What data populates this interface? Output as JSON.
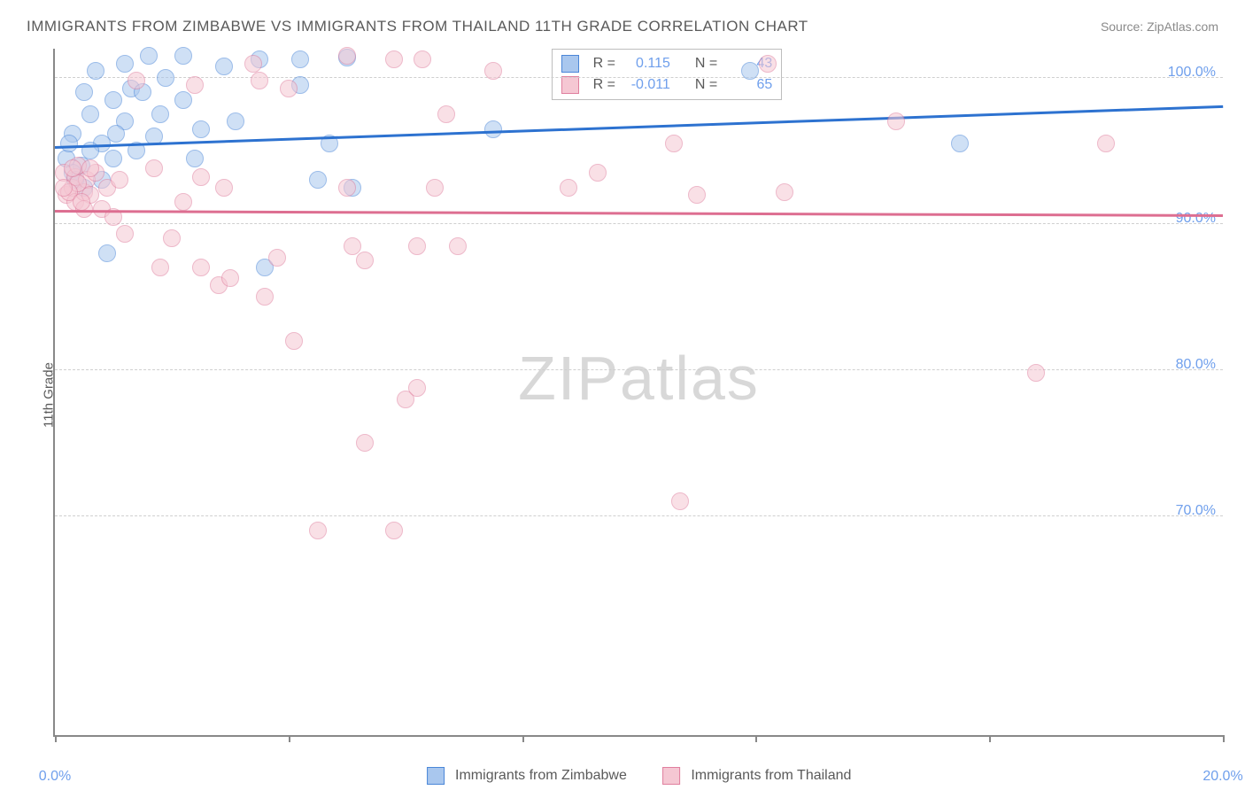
{
  "title": "IMMIGRANTS FROM ZIMBABWE VS IMMIGRANTS FROM THAILAND 11TH GRADE CORRELATION CHART",
  "source": "Source: ZipAtlas.com",
  "y_axis_label": "11th Grade",
  "watermark": "ZIPatlas",
  "chart": {
    "type": "scatter",
    "xlim": [
      0,
      20
    ],
    "ylim": [
      55,
      102
    ],
    "y_ticks": [
      70,
      80,
      90,
      100
    ],
    "y_tick_labels": [
      "70.0%",
      "80.0%",
      "90.0%",
      "100.0%"
    ],
    "x_ticks": [
      0,
      4,
      8,
      12,
      16,
      20
    ],
    "x_tick_labels": {
      "0": "0.0%",
      "20": "20.0%"
    },
    "background_color": "#ffffff",
    "grid_color": "#cfcfcf",
    "axis_color": "#888888",
    "label_color": "#5a5a5a",
    "tick_label_color": "#6f9fec",
    "marker_radius": 10,
    "marker_opacity": 0.55
  },
  "series": [
    {
      "name": "Immigrants from Zimbabwe",
      "fill": "#a9c7ee",
      "stroke": "#4a86d8",
      "trend_color": "#2d72d0",
      "R": "0.115",
      "N": "43",
      "trend": {
        "x1": 0,
        "y1": 95.2,
        "x2": 20,
        "y2": 98.0
      },
      "points": [
        [
          0.3,
          96.2
        ],
        [
          0.45,
          94.0
        ],
        [
          0.5,
          99.0
        ],
        [
          0.3,
          93.5
        ],
        [
          0.6,
          97.5
        ],
        [
          0.2,
          94.5
        ],
        [
          0.7,
          100.5
        ],
        [
          0.8,
          95.5
        ],
        [
          1.0,
          98.5
        ],
        [
          1.0,
          94.5
        ],
        [
          1.2,
          101.0
        ],
        [
          1.2,
          97.0
        ],
        [
          1.3,
          99.3
        ],
        [
          1.5,
          99.0
        ],
        [
          0.9,
          88.0
        ],
        [
          1.6,
          101.5
        ],
        [
          1.7,
          96.0
        ],
        [
          1.8,
          97.5
        ],
        [
          1.9,
          100.0
        ],
        [
          0.6,
          95.0
        ],
        [
          2.2,
          101.5
        ],
        [
          2.2,
          98.5
        ],
        [
          2.4,
          94.5
        ],
        [
          2.5,
          96.5
        ],
        [
          0.8,
          93.0
        ],
        [
          2.9,
          100.8
        ],
        [
          3.1,
          97.0
        ],
        [
          3.5,
          101.3
        ],
        [
          3.6,
          87.0
        ],
        [
          1.4,
          95.0
        ],
        [
          4.2,
          101.3
        ],
        [
          4.2,
          99.5
        ],
        [
          4.5,
          93.0
        ],
        [
          4.7,
          95.5
        ],
        [
          0.5,
          92.5
        ],
        [
          5.0,
          101.4
        ],
        [
          5.1,
          92.5
        ],
        [
          7.5,
          96.5
        ],
        [
          11.9,
          100.5
        ],
        [
          0.35,
          93.0
        ],
        [
          15.5,
          95.5
        ],
        [
          1.05,
          96.2
        ],
        [
          0.25,
          95.5
        ]
      ]
    },
    {
      "name": "Immigrants from Thailand",
      "fill": "#f5c7d3",
      "stroke": "#e07f9e",
      "trend_color": "#dd6e91",
      "R": "-0.011",
      "N": "65",
      "trend": {
        "x1": 0,
        "y1": 90.8,
        "x2": 20,
        "y2": 90.5
      },
      "points": [
        [
          0.15,
          93.5
        ],
        [
          0.2,
          92.0
        ],
        [
          0.3,
          92.5
        ],
        [
          0.35,
          93.2
        ],
        [
          0.4,
          94.0
        ],
        [
          0.35,
          91.5
        ],
        [
          0.5,
          92.2
        ],
        [
          0.55,
          93.0
        ],
        [
          0.6,
          92.0
        ],
        [
          0.4,
          92.8
        ],
        [
          0.7,
          93.5
        ],
        [
          0.8,
          91.0
        ],
        [
          0.9,
          92.5
        ],
        [
          1.0,
          90.5
        ],
        [
          0.25,
          92.2
        ],
        [
          1.1,
          93.0
        ],
        [
          1.2,
          89.3
        ],
        [
          1.4,
          99.8
        ],
        [
          1.7,
          93.8
        ],
        [
          1.8,
          87.0
        ],
        [
          2.0,
          89.0
        ],
        [
          2.2,
          91.5
        ],
        [
          2.4,
          99.5
        ],
        [
          2.5,
          93.2
        ],
        [
          2.5,
          87.0
        ],
        [
          2.8,
          85.8
        ],
        [
          2.9,
          92.5
        ],
        [
          3.0,
          86.3
        ],
        [
          3.4,
          101.0
        ],
        [
          3.5,
          99.8
        ],
        [
          3.6,
          85.0
        ],
        [
          3.8,
          87.7
        ],
        [
          4.0,
          99.3
        ],
        [
          4.1,
          82.0
        ],
        [
          4.5,
          69.0
        ],
        [
          5.0,
          101.5
        ],
        [
          5.0,
          92.5
        ],
        [
          5.1,
          88.5
        ],
        [
          5.3,
          87.5
        ],
        [
          5.3,
          75.0
        ],
        [
          5.8,
          101.3
        ],
        [
          5.8,
          69.0
        ],
        [
          6.0,
          78.0
        ],
        [
          6.2,
          88.5
        ],
        [
          6.2,
          78.8
        ],
        [
          6.3,
          101.3
        ],
        [
          6.5,
          92.5
        ],
        [
          6.7,
          97.5
        ],
        [
          6.9,
          88.5
        ],
        [
          7.5,
          100.5
        ],
        [
          8.8,
          92.5
        ],
        [
          9.3,
          93.5
        ],
        [
          10.6,
          95.5
        ],
        [
          10.7,
          71.0
        ],
        [
          11.0,
          92.0
        ],
        [
          12.2,
          101.0
        ],
        [
          12.5,
          92.2
        ],
        [
          14.4,
          97.0
        ],
        [
          16.8,
          79.8
        ],
        [
          0.5,
          91.0
        ],
        [
          18.0,
          95.5
        ],
        [
          0.6,
          93.8
        ],
        [
          0.3,
          93.8
        ],
        [
          0.45,
          91.5
        ],
        [
          0.15,
          92.5
        ]
      ]
    }
  ],
  "legend_bottom": [
    {
      "label": "Immigrants from Zimbabwe",
      "fill": "#a9c7ee",
      "stroke": "#4a86d8"
    },
    {
      "label": "Immigrants from Thailand",
      "fill": "#f5c7d3",
      "stroke": "#e07f9e"
    }
  ],
  "stats_labels": {
    "R": "R  =",
    "N": "N  ="
  }
}
